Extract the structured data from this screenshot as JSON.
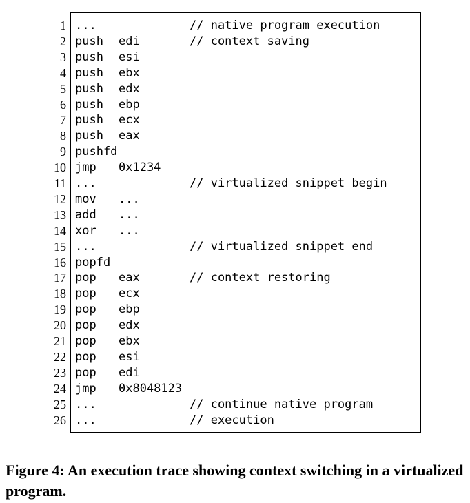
{
  "listing": {
    "lines": [
      {
        "num": "1",
        "op": "...",
        "args": "",
        "comment": "// native program execution"
      },
      {
        "num": "2",
        "op": "push",
        "args": "edi",
        "comment": "// context saving"
      },
      {
        "num": "3",
        "op": "push",
        "args": "esi",
        "comment": ""
      },
      {
        "num": "4",
        "op": "push",
        "args": "ebx",
        "comment": ""
      },
      {
        "num": "5",
        "op": "push",
        "args": "edx",
        "comment": ""
      },
      {
        "num": "6",
        "op": "push",
        "args": "ebp",
        "comment": ""
      },
      {
        "num": "7",
        "op": "push",
        "args": "ecx",
        "comment": ""
      },
      {
        "num": "8",
        "op": "push",
        "args": "eax",
        "comment": ""
      },
      {
        "num": "9",
        "op": "pushfd",
        "args": "",
        "comment": ""
      },
      {
        "num": "10",
        "op": "jmp",
        "args": "0x1234",
        "comment": ""
      },
      {
        "num": "11",
        "op": "...",
        "args": "",
        "comment": "// virtualized snippet begin"
      },
      {
        "num": "12",
        "op": "mov",
        "args": "...",
        "comment": ""
      },
      {
        "num": "13",
        "op": "add",
        "args": "...",
        "comment": ""
      },
      {
        "num": "14",
        "op": "xor",
        "args": "...",
        "comment": ""
      },
      {
        "num": "15",
        "op": "...",
        "args": "",
        "comment": "// virtualized snippet end"
      },
      {
        "num": "16",
        "op": "popfd",
        "args": "",
        "comment": ""
      },
      {
        "num": "17",
        "op": "pop",
        "args": "eax",
        "comment": "// context restoring"
      },
      {
        "num": "18",
        "op": "pop",
        "args": "ecx",
        "comment": ""
      },
      {
        "num": "19",
        "op": "pop",
        "args": "ebp",
        "comment": ""
      },
      {
        "num": "20",
        "op": "pop",
        "args": "edx",
        "comment": ""
      },
      {
        "num": "21",
        "op": "pop",
        "args": "ebx",
        "comment": ""
      },
      {
        "num": "22",
        "op": "pop",
        "args": "esi",
        "comment": ""
      },
      {
        "num": "23",
        "op": "pop",
        "args": "edi",
        "comment": ""
      },
      {
        "num": "24",
        "op": "jmp",
        "args": "0x8048123",
        "comment": ""
      },
      {
        "num": "25",
        "op": "...",
        "args": "",
        "comment": "// continue native program"
      },
      {
        "num": "26",
        "op": "...",
        "args": "",
        "comment": "// execution"
      }
    ]
  },
  "caption": {
    "text": "Figure 4: An execution trace showing context switching in a virtualized program."
  }
}
